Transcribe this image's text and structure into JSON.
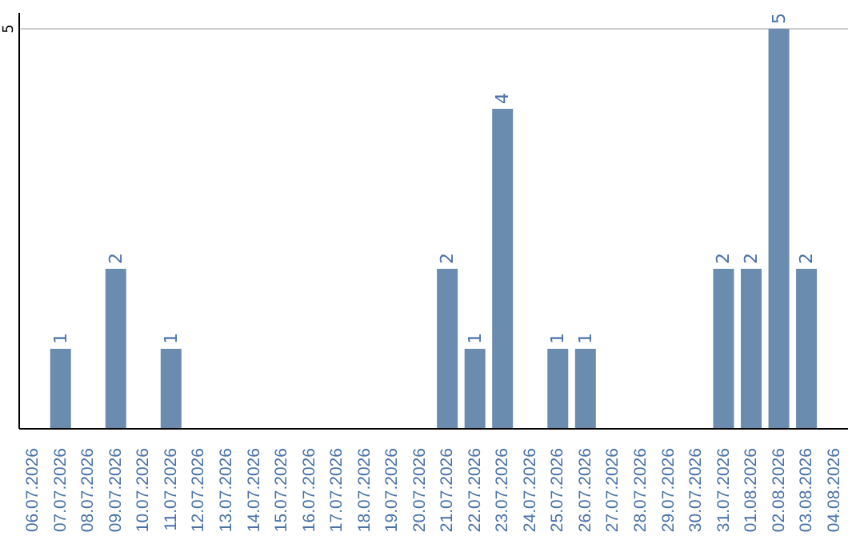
{
  "chart_data": {
    "type": "bar",
    "categories": [
      "06.07.2026",
      "07.07.2026",
      "08.07.2026",
      "09.07.2026",
      "10.07.2026",
      "11.07.2026",
      "12.07.2026",
      "13.07.2026",
      "14.07.2026",
      "15.07.2026",
      "16.07.2026",
      "17.07.2026",
      "18.07.2026",
      "19.07.2026",
      "20.07.2026",
      "21.07.2026",
      "22.07.2026",
      "23.07.2026",
      "24.07.2026",
      "25.07.2026",
      "26.07.2026",
      "27.07.2026",
      "28.07.2026",
      "29.07.2026",
      "30.07.2026",
      "31.07.2026",
      "01.08.2026",
      "02.08.2026",
      "03.08.2026",
      "04.08.2026"
    ],
    "values": [
      null,
      1,
      null,
      2,
      null,
      1,
      null,
      null,
      null,
      null,
      null,
      null,
      null,
      null,
      null,
      2,
      1,
      4,
      null,
      1,
      1,
      null,
      null,
      null,
      null,
      2,
      2,
      5,
      2,
      null
    ],
    "color": "#6a8caf",
    "ylim": [
      0,
      5.2
    ],
    "yticks": [
      5
    ],
    "grid": "y",
    "data_labels": true
  }
}
